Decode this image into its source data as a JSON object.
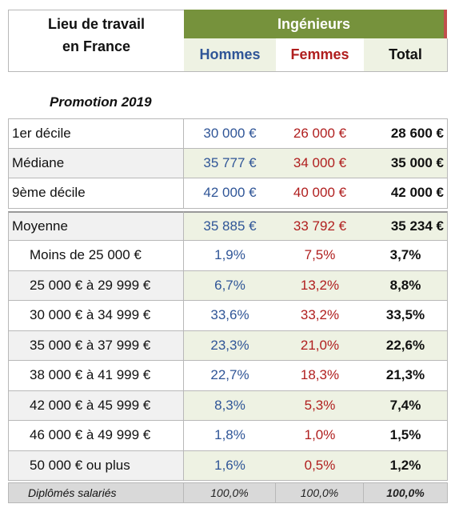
{
  "header": {
    "place_label": [
      "Lieu de travail",
      "en France"
    ],
    "group": "Ingénieurs",
    "columns": [
      "Hommes",
      "Femmes",
      "Total"
    ]
  },
  "subtitle": "Promotion 2019",
  "stats": [
    {
      "label": "1er décile",
      "values": [
        "30 000 €",
        "26 000 €",
        "28 600 €"
      ]
    },
    {
      "label": "Médiane",
      "values": [
        "35 777 €",
        "34 000 €",
        "35 000 €"
      ]
    },
    {
      "label": "9ème décile",
      "values": [
        "42 000 €",
        "40 000 €",
        "42 000 €"
      ]
    }
  ],
  "mean": {
    "label": "Moyenne",
    "values": [
      "35 885 €",
      "33 792 €",
      "35 234 €"
    ]
  },
  "distribution": [
    {
      "label": "Moins de 25 000 €",
      "values": [
        "1,9%",
        "7,5%",
        "3,7%"
      ]
    },
    {
      "label": "25 000 € à 29 999 €",
      "values": [
        "6,7%",
        "13,2%",
        "8,8%"
      ]
    },
    {
      "label": "30 000 € à 34 999 €",
      "values": [
        "33,6%",
        "33,2%",
        "33,5%"
      ]
    },
    {
      "label": "35 000 € à 37 999 €",
      "values": [
        "23,3%",
        "21,0%",
        "22,6%"
      ]
    },
    {
      "label": "38 000 € à 41 999 €",
      "values": [
        "22,7%",
        "18,3%",
        "21,3%"
      ]
    },
    {
      "label": "42 000 € à 45 999 €",
      "values": [
        "8,3%",
        "5,3%",
        "7,4%"
      ]
    },
    {
      "label": "46 000 € à 49 999 €",
      "values": [
        "1,8%",
        "1,0%",
        "1,5%"
      ]
    },
    {
      "label": "50 000 € ou plus",
      "values": [
        "1,6%",
        "0,5%",
        "1,2%"
      ]
    }
  ],
  "footer": {
    "label": "Diplômés salariés",
    "values": [
      "100,0%",
      "100,0%",
      "100,0%"
    ]
  }
}
